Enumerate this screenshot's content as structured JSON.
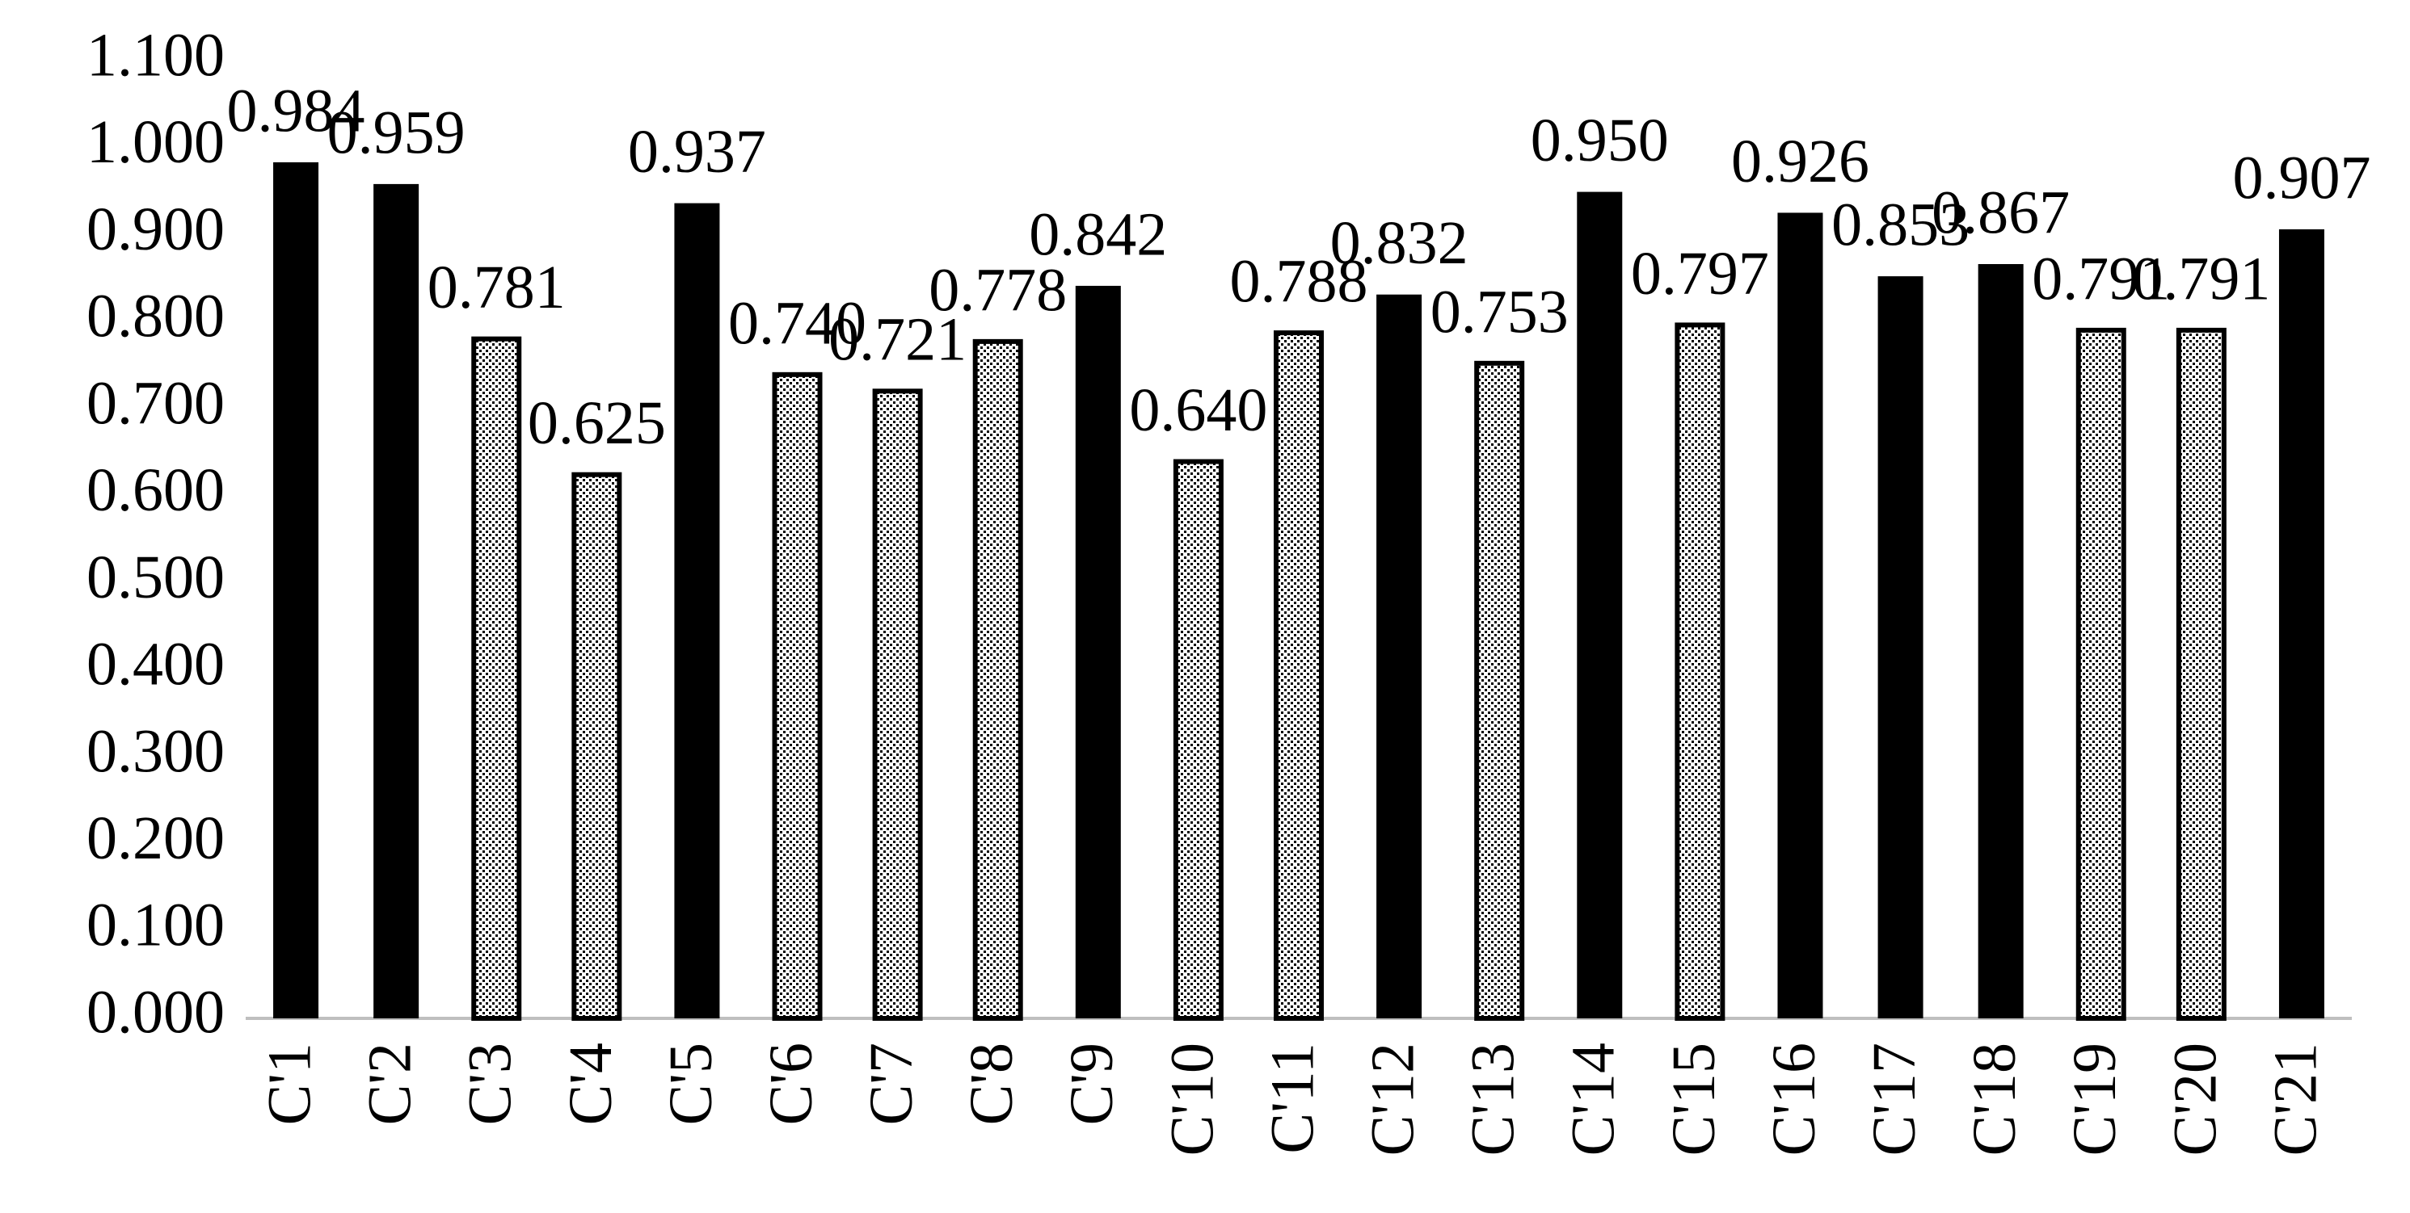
{
  "chart_data": {
    "type": "bar",
    "categories": [
      "C'1",
      "C'2",
      "C'3",
      "C'4",
      "C'5",
      "C'6",
      "C'7",
      "C'8",
      "C'9",
      "C'10",
      "C'11",
      "C'12",
      "C'13",
      "C'14",
      "C'15",
      "C'16",
      "C'17",
      "C'18",
      "C'19",
      "C'20",
      "C'21"
    ],
    "values": [
      0.984,
      0.959,
      0.781,
      0.625,
      0.937,
      0.74,
      0.721,
      0.778,
      0.842,
      0.64,
      0.788,
      0.832,
      0.753,
      0.95,
      0.797,
      0.926,
      0.853,
      0.867,
      0.791,
      0.791,
      0.907
    ],
    "value_labels": [
      "0.984",
      "0.959",
      "0.781",
      "0.625",
      "0.937",
      "0.740",
      "0.721",
      "0.778",
      "0.842",
      "0.640",
      "0.788",
      "0.832",
      "0.753",
      "0.950",
      "0.797",
      "0.926",
      "0.853",
      "0.867",
      "0.791",
      "0.791",
      "0.907"
    ],
    "fills": [
      "solid",
      "solid",
      "dotted",
      "dotted",
      "solid",
      "dotted",
      "dotted",
      "dotted",
      "solid",
      "dotted",
      "dotted",
      "solid",
      "dotted",
      "solid",
      "dotted",
      "solid",
      "solid",
      "solid",
      "dotted",
      "dotted",
      "solid"
    ],
    "color": "#000000",
    "ylim": [
      0,
      1.1
    ],
    "yticks": [
      {
        "value": 0,
        "label": "0.000"
      },
      {
        "value": 0.1,
        "label": "0.100"
      },
      {
        "value": 0.2,
        "label": "0.200"
      },
      {
        "value": 0.3,
        "label": "0.300"
      },
      {
        "value": 0.4,
        "label": "0.400"
      },
      {
        "value": 0.5,
        "label": "0.500"
      },
      {
        "value": 0.6,
        "label": "0.600"
      },
      {
        "value": 0.7,
        "label": "0.700"
      },
      {
        "value": 0.8,
        "label": "0.800"
      },
      {
        "value": 0.9,
        "label": "0.900"
      },
      {
        "value": 1,
        "label": "1.000"
      },
      {
        "value": 1.1,
        "label": "1.100"
      }
    ],
    "grid": false
  }
}
